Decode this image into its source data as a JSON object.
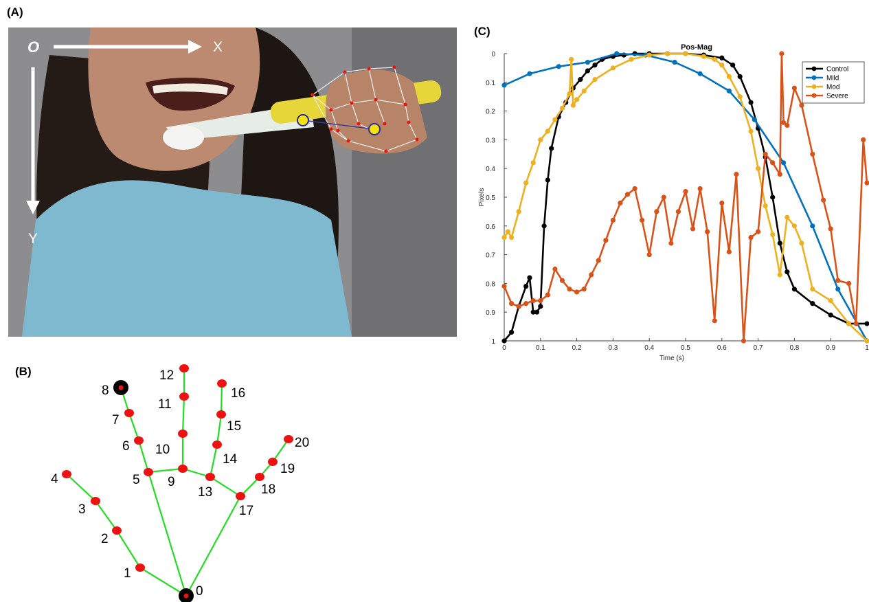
{
  "panels": {
    "a": "(A)",
    "b": "(B)",
    "c": "(C)"
  },
  "photo": {
    "origin_label": "O",
    "x_axis_label": "X",
    "y_axis_label": "Y"
  },
  "hand_landmarks": {
    "labels": [
      "0",
      "1",
      "2",
      "3",
      "4",
      "5",
      "6",
      "7",
      "8",
      "9",
      "10",
      "11",
      "12",
      "13",
      "14",
      "15",
      "16",
      "17",
      "18",
      "19",
      "20"
    ],
    "connections": [
      [
        0,
        1
      ],
      [
        1,
        2
      ],
      [
        2,
        3
      ],
      [
        3,
        4
      ],
      [
        0,
        5
      ],
      [
        5,
        6
      ],
      [
        6,
        7
      ],
      [
        7,
        8
      ],
      [
        5,
        9
      ],
      [
        9,
        10
      ],
      [
        10,
        11
      ],
      [
        11,
        12
      ],
      [
        9,
        13
      ],
      [
        13,
        14
      ],
      [
        14,
        15
      ],
      [
        15,
        16
      ],
      [
        13,
        17
      ],
      [
        0,
        17
      ],
      [
        17,
        18
      ],
      [
        18,
        19
      ],
      [
        19,
        20
      ]
    ],
    "highlighted": [
      "0",
      "8"
    ],
    "colors": {
      "point": "#ee1111",
      "bone": "#22dd22",
      "highlight": "#000000"
    }
  },
  "chart_data": {
    "type": "line",
    "title": "Pos-Mag",
    "xlabel": "Time (s)",
    "ylabel": "Pixels",
    "xlim": [
      0,
      1
    ],
    "ylim": [
      0,
      1
    ],
    "y_reversed": true,
    "xticks": [
      "0",
      "0.1",
      "0.2",
      "0.3",
      "0.4",
      "0.5",
      "0.6",
      "0.7",
      "0.8",
      "0.9",
      "1"
    ],
    "yticks": [
      "0",
      "0.1",
      "0.2",
      "0.3",
      "0.4",
      "0.5",
      "0.6",
      "0.7",
      "0.8",
      "0.9",
      "1"
    ],
    "grid": false,
    "legend_position": "top-right",
    "series": [
      {
        "name": "Control",
        "color": "#000000",
        "x": [
          0,
          0.02,
          0.04,
          0.06,
          0.07,
          0.08,
          0.09,
          0.1,
          0.11,
          0.12,
          0.13,
          0.15,
          0.17,
          0.19,
          0.21,
          0.23,
          0.25,
          0.27,
          0.3,
          0.33,
          0.36,
          0.4,
          0.45,
          0.5,
          0.55,
          0.6,
          0.63,
          0.65,
          0.68,
          0.7,
          0.72,
          0.74,
          0.76,
          0.78,
          0.8,
          0.85,
          0.9,
          0.95,
          1.0
        ],
        "y": [
          1.0,
          0.97,
          0.88,
          0.81,
          0.78,
          0.9,
          0.9,
          0.88,
          0.6,
          0.44,
          0.33,
          0.22,
          0.17,
          0.12,
          0.09,
          0.06,
          0.04,
          0.02,
          0.01,
          0.005,
          0.0,
          0.0,
          0.0,
          0.0,
          0.005,
          0.015,
          0.04,
          0.08,
          0.17,
          0.26,
          0.36,
          0.5,
          0.66,
          0.76,
          0.82,
          0.87,
          0.91,
          0.94,
          0.94
        ]
      },
      {
        "name": "Mild",
        "color": "#0072bd",
        "x": [
          0,
          0.07,
          0.15,
          0.23,
          0.31,
          0.39,
          0.47,
          0.54,
          0.62,
          0.69,
          0.77,
          0.85,
          0.92,
          1.0
        ],
        "y": [
          0.11,
          0.07,
          0.045,
          0.03,
          0.0,
          0.005,
          0.03,
          0.07,
          0.13,
          0.23,
          0.38,
          0.6,
          0.82,
          1.0
        ]
      },
      {
        "name": "Mod",
        "color": "#edb120",
        "x": [
          0,
          0.01,
          0.02,
          0.04,
          0.06,
          0.08,
          0.1,
          0.12,
          0.14,
          0.16,
          0.18,
          0.185,
          0.19,
          0.2,
          0.22,
          0.25,
          0.3,
          0.35,
          0.4,
          0.45,
          0.5,
          0.55,
          0.58,
          0.6,
          0.62,
          0.65,
          0.68,
          0.7,
          0.72,
          0.74,
          0.76,
          0.78,
          0.8,
          0.82,
          0.85,
          0.9,
          0.95,
          1.0
        ],
        "y": [
          0.64,
          0.62,
          0.64,
          0.55,
          0.45,
          0.38,
          0.3,
          0.27,
          0.23,
          0.19,
          0.14,
          0.02,
          0.18,
          0.16,
          0.13,
          0.09,
          0.05,
          0.02,
          0.005,
          0.0,
          0.0,
          0.01,
          0.02,
          0.04,
          0.08,
          0.15,
          0.27,
          0.4,
          0.53,
          0.63,
          0.77,
          0.57,
          0.6,
          0.66,
          0.82,
          0.86,
          0.94,
          1.0
        ]
      },
      {
        "name": "Severe",
        "color": "#d95319",
        "x": [
          0,
          0.02,
          0.04,
          0.06,
          0.08,
          0.1,
          0.12,
          0.14,
          0.16,
          0.18,
          0.2,
          0.22,
          0.24,
          0.26,
          0.28,
          0.3,
          0.32,
          0.34,
          0.36,
          0.38,
          0.4,
          0.42,
          0.44,
          0.46,
          0.48,
          0.5,
          0.52,
          0.54,
          0.56,
          0.58,
          0.6,
          0.62,
          0.64,
          0.66,
          0.68,
          0.7,
          0.72,
          0.74,
          0.76,
          0.765,
          0.77,
          0.78,
          0.8,
          0.82,
          0.85,
          0.88,
          0.9,
          0.92,
          0.95,
          0.97,
          0.99,
          1.0
        ],
        "y": [
          0.81,
          0.87,
          0.88,
          0.87,
          0.86,
          0.86,
          0.84,
          0.75,
          0.79,
          0.82,
          0.83,
          0.82,
          0.77,
          0.72,
          0.65,
          0.58,
          0.52,
          0.49,
          0.47,
          0.58,
          0.7,
          0.55,
          0.5,
          0.66,
          0.55,
          0.48,
          0.61,
          0.47,
          0.62,
          0.93,
          0.52,
          0.69,
          0.42,
          1.0,
          0.64,
          0.62,
          0.35,
          0.38,
          0.42,
          0.0,
          0.24,
          0.25,
          0.12,
          0.18,
          0.35,
          0.51,
          0.61,
          0.79,
          0.8,
          0.94,
          0.3,
          0.45
        ]
      }
    ]
  }
}
